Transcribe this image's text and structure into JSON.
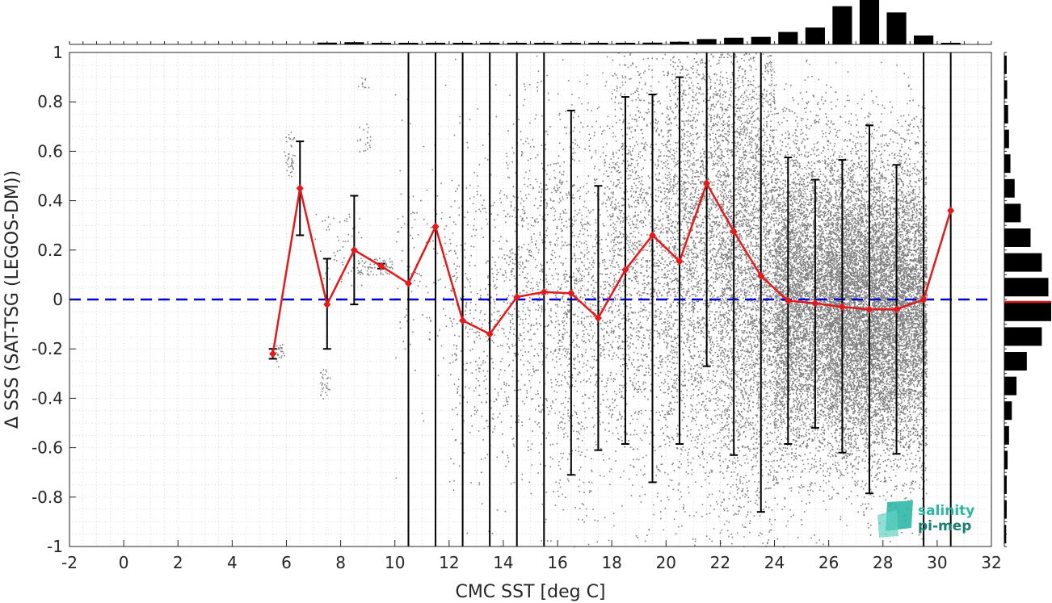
{
  "chart_data": {
    "type": "scatter",
    "title": "",
    "xlabel": "CMC SST [deg C]",
    "ylabel": "Δ SSS (SAT-TSG (LEGOS-DM))",
    "xlim": [
      -2,
      32
    ],
    "ylim": [
      -1,
      1
    ],
    "xticks": [
      -2,
      0,
      2,
      4,
      6,
      8,
      10,
      12,
      14,
      16,
      18,
      20,
      22,
      24,
      26,
      28,
      30,
      32
    ],
    "yticks": [
      -1,
      -0.8,
      -0.6,
      -0.4,
      -0.2,
      0,
      0.2,
      0.4,
      0.6,
      0.8,
      1
    ],
    "grid": true,
    "reference_line": {
      "y": 0,
      "color": "#0000dd",
      "style": "dashed"
    },
    "binned_mean": {
      "color": "#e31a1c",
      "x": [
        5.5,
        6.5,
        7.5,
        8.5,
        9.5,
        10.5,
        11.5,
        12.5,
        13.5,
        14.5,
        15.5,
        16.5,
        17.5,
        18.5,
        19.5,
        20.5,
        21.5,
        22.5,
        23.5,
        24.5,
        25.5,
        26.5,
        27.5,
        28.5,
        29.5,
        30.5
      ],
      "y": [
        -0.22,
        0.45,
        -0.02,
        0.2,
        0.135,
        0.065,
        0.295,
        -0.085,
        -0.14,
        0.01,
        0.03,
        0.025,
        -0.075,
        0.12,
        0.26,
        0.155,
        0.47,
        0.275,
        0.095,
        -0.005,
        -0.015,
        -0.03,
        -0.04,
        -0.04,
        0.0,
        0.36
      ],
      "err_low": [
        -0.24,
        0.26,
        -0.2,
        -0.02,
        0.125,
        -1.0,
        -1.0,
        -1.0,
        -1.0,
        -1.0,
        -1.0,
        -0.71,
        -0.61,
        -0.585,
        -0.74,
        -0.585,
        -0.27,
        -0.63,
        -0.86,
        -0.585,
        -0.52,
        -0.62,
        -0.785,
        -0.625,
        -1.0,
        -1.0
      ],
      "err_high": [
        -0.2,
        0.64,
        0.165,
        0.42,
        0.145,
        1.0,
        1.0,
        1.0,
        1.0,
        1.0,
        1.0,
        0.765,
        0.46,
        0.82,
        0.83,
        0.9,
        1.0,
        1.0,
        1.0,
        0.575,
        0.485,
        0.565,
        0.705,
        0.545,
        1.0,
        1.0
      ]
    },
    "scatter_density": {
      "color": "#808080",
      "clusters": [
        {
          "x": [
            5.9,
            6.3
          ],
          "y": [
            0.5,
            0.68
          ],
          "n": 40
        },
        {
          "x": [
            5.6,
            5.9
          ],
          "y": [
            -0.27,
            -0.18
          ],
          "n": 25
        },
        {
          "x": [
            7.2,
            7.6
          ],
          "y": [
            -0.4,
            -0.28
          ],
          "n": 30
        },
        {
          "x": [
            7.0,
            8.8
          ],
          "y": [
            0.05,
            0.35
          ],
          "n": 60
        },
        {
          "x": [
            8.6,
            9.9
          ],
          "y": [
            0.1,
            0.17
          ],
          "n": 70
        },
        {
          "x": [
            8.6,
            9.1
          ],
          "y": [
            0.6,
            0.72
          ],
          "n": 20
        },
        {
          "x": [
            8.6,
            9.1
          ],
          "y": [
            0.86,
            0.9
          ],
          "n": 10
        }
      ],
      "bins": [
        {
          "x0": 10,
          "x1": 12,
          "mean": 0.15,
          "sd": 0.25,
          "n": 120
        },
        {
          "x0": 12,
          "x1": 14,
          "mean": -0.1,
          "sd": 0.35,
          "n": 400
        },
        {
          "x0": 14,
          "x1": 16,
          "mean": 0.02,
          "sd": 0.38,
          "n": 700
        },
        {
          "x0": 16,
          "x1": 18,
          "mean": 0.0,
          "sd": 0.42,
          "n": 1000
        },
        {
          "x0": 18,
          "x1": 20,
          "mean": 0.18,
          "sd": 0.48,
          "n": 1500
        },
        {
          "x0": 20,
          "x1": 22,
          "mean": 0.25,
          "sd": 0.52,
          "n": 2500
        },
        {
          "x0": 22,
          "x1": 24,
          "mean": 0.15,
          "sd": 0.5,
          "n": 3500
        },
        {
          "x0": 24,
          "x1": 26,
          "mean": 0.0,
          "sd": 0.32,
          "n": 5000
        },
        {
          "x0": 26,
          "x1": 28,
          "mean": -0.03,
          "sd": 0.3,
          "n": 6500
        },
        {
          "x0": 28,
          "x1": 29.6,
          "mean": -0.04,
          "sd": 0.3,
          "n": 4500
        }
      ]
    },
    "top_histogram": {
      "x": [
        -1.5,
        -0.5,
        0.5,
        1.5,
        2.5,
        3.5,
        4.5,
        5.5,
        6.5,
        7.5,
        8.5,
        9.5,
        10.5,
        11.5,
        12.5,
        13.5,
        14.5,
        15.5,
        16.5,
        17.5,
        18.5,
        19.5,
        20.5,
        21.5,
        22.5,
        23.5,
        24.5,
        25.5,
        26.5,
        27.5,
        28.5,
        29.5,
        30.5,
        31.5
      ],
      "fraction": [
        0.0,
        0.0,
        0.0,
        0.0,
        0.0,
        0.0,
        0.0,
        0.0,
        0.0,
        0.04,
        0.05,
        0.02,
        0.02,
        0.02,
        0.02,
        0.03,
        0.03,
        0.03,
        0.03,
        0.03,
        0.03,
        0.04,
        0.06,
        0.12,
        0.15,
        0.17,
        0.28,
        0.38,
        0.86,
        1.0,
        0.72,
        0.2,
        0.02,
        0.0
      ]
    },
    "right_histogram": {
      "y": [
        -0.95,
        -0.85,
        -0.75,
        -0.65,
        -0.55,
        -0.45,
        -0.35,
        -0.25,
        -0.15,
        -0.05,
        0.05,
        0.15,
        0.25,
        0.35,
        0.45,
        0.55,
        0.65,
        0.75,
        0.85,
        0.95
      ],
      "fraction": [
        0.04,
        0.05,
        0.05,
        0.07,
        0.1,
        0.16,
        0.26,
        0.48,
        0.8,
        1.0,
        0.94,
        0.8,
        0.56,
        0.35,
        0.22,
        0.13,
        0.1,
        0.08,
        0.06,
        0.05
      ],
      "mean_line": {
        "y": -0.01,
        "color": "#e31a1c"
      }
    }
  },
  "logo": {
    "line1": "salinity",
    "line2": "pi-mep",
    "color1": "#2ab5a5",
    "color2": "#1a7f72"
  }
}
